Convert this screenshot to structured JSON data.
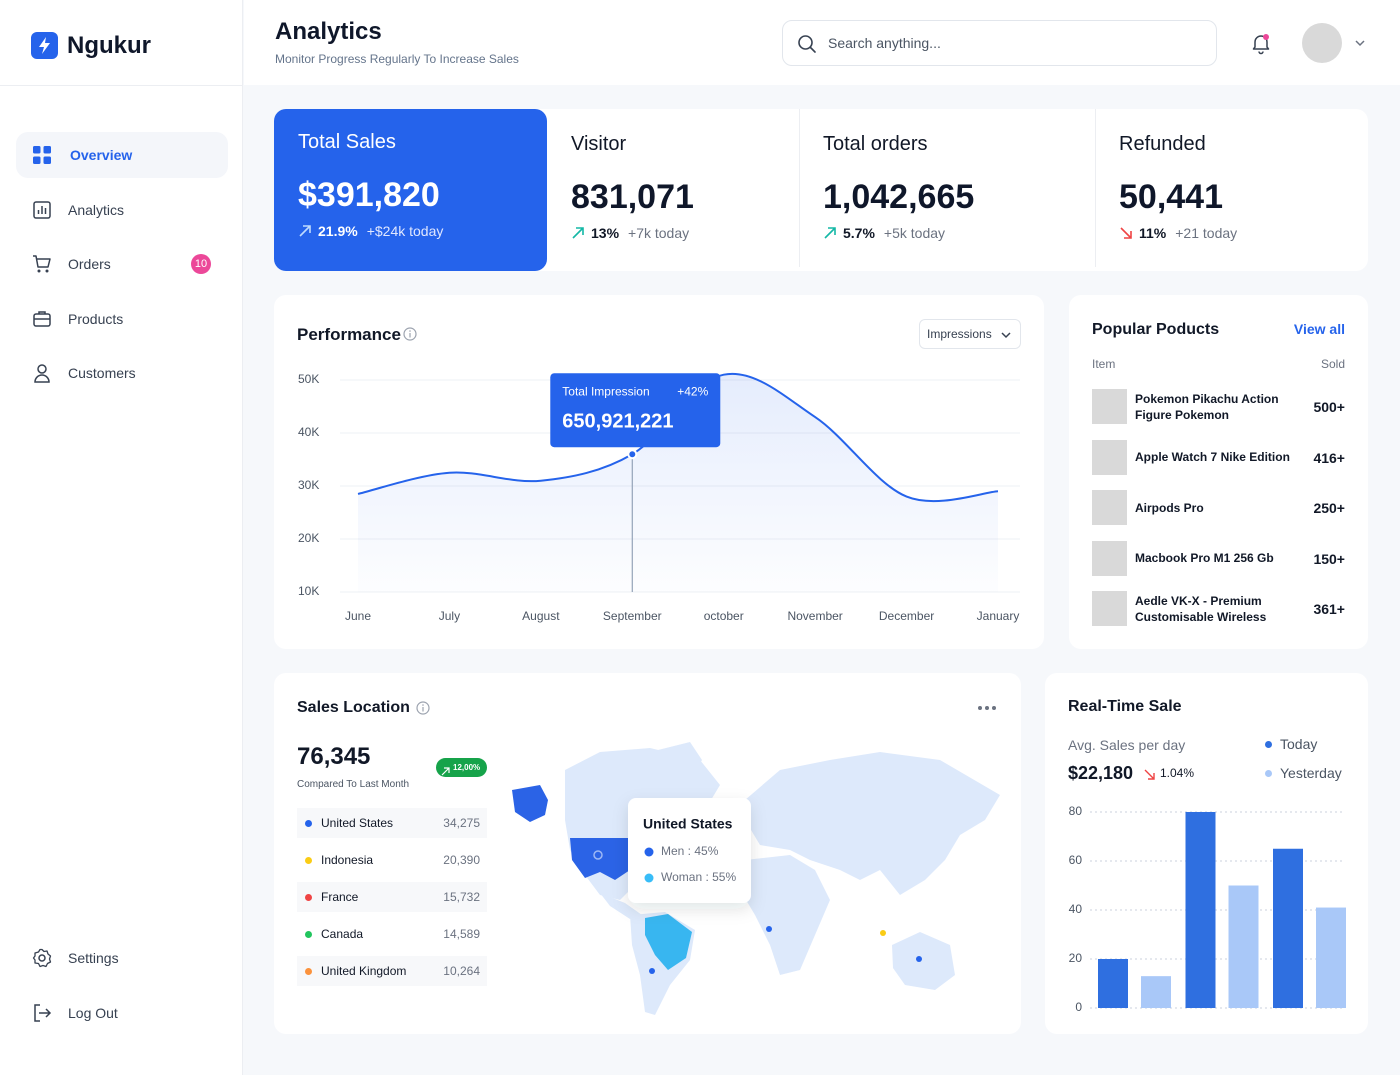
{
  "brand": {
    "name": "Ngukur"
  },
  "nav": {
    "items": [
      {
        "label": "Overview",
        "active": true
      },
      {
        "label": "Analytics"
      },
      {
        "label": "Orders",
        "badge": "10"
      },
      {
        "label": "Products"
      },
      {
        "label": "Customers"
      }
    ],
    "footer": [
      {
        "label": "Settings"
      },
      {
        "label": "Log Out"
      }
    ]
  },
  "header": {
    "title": "Analytics",
    "subtitle": "Monitor Progress Regularly To Increase Sales",
    "search_placeholder": "Search anything..."
  },
  "stats": [
    {
      "label": "Total Sales",
      "value": "$391,820",
      "change": "21.9%",
      "today": "+$24k today",
      "direction": "up",
      "highlight": true
    },
    {
      "label": "Visitor",
      "value": "831,071",
      "change": "13%",
      "today": "+7k today",
      "direction": "up"
    },
    {
      "label": "Total orders",
      "value": "1,042,665",
      "change": "5.7%",
      "today": "+5k today",
      "direction": "up"
    },
    {
      "label": "Refunded",
      "value": "50,441",
      "change": "11%",
      "today": "+21 today",
      "direction": "down"
    }
  ],
  "chart_data": [
    {
      "type": "line",
      "title": "Performance",
      "dropdown": "Impressions",
      "categories": [
        "June",
        "July",
        "August",
        "September",
        "october",
        "November",
        "December",
        "January"
      ],
      "values": [
        28500,
        32500,
        31000,
        36000,
        51000,
        43000,
        28000,
        29000
      ],
      "color": "#2563eb",
      "ylim": [
        10000,
        52000
      ],
      "yticks": [
        {
          "value": 10000,
          "label": "10K"
        },
        {
          "value": 20000,
          "label": "20K"
        },
        {
          "value": 30000,
          "label": "30K"
        },
        {
          "value": 40000,
          "label": "40K"
        },
        {
          "value": 50000,
          "label": "50K"
        }
      ],
      "grid": true,
      "annotation": {
        "category": "September",
        "title": "Total Impression",
        "change": "+42%",
        "value": "650,921,221"
      }
    },
    {
      "type": "bar",
      "title": "Real-Time Sale",
      "subtitle": "Avg. Sales per day",
      "value": "$22,180",
      "change": "1.04%",
      "categories": [
        null,
        null,
        null
      ],
      "series": [
        {
          "name": "Today",
          "color": "#2f6fe0",
          "values": [
            20,
            80,
            65
          ]
        },
        {
          "name": "Yesterday",
          "color": "#a9c8f8",
          "values": [
            13,
            50,
            41
          ]
        }
      ],
      "ylim": [
        0,
        80
      ],
      "yticks": [
        0,
        20,
        40,
        60,
        80
      ],
      "grid": true
    }
  ],
  "popular_products": {
    "title": "Popular Poducts",
    "link": "View all",
    "columns": [
      "Item",
      "Sold"
    ],
    "rows": [
      {
        "name": "Pokemon Pikachu Action Figure Pokemon",
        "sold": "500+"
      },
      {
        "name": "Apple Watch 7 Nike Edition",
        "sold": "416+"
      },
      {
        "name": "Airpods Pro",
        "sold": "250+"
      },
      {
        "name": "Macbook Pro M1 256 Gb",
        "sold": "150+"
      },
      {
        "name": "Aedle VK-X - Premium Customisable Wireless",
        "sold": "361+"
      }
    ]
  },
  "sales_location": {
    "title": "Sales Location",
    "value": "76,345",
    "caption": "Compared To Last Month",
    "badge": "12,00%",
    "countries": [
      {
        "name": "United States",
        "value": "34,275",
        "color": "#2563eb"
      },
      {
        "name": "Indonesia",
        "value": "20,390",
        "color": "#facc15"
      },
      {
        "name": "France",
        "value": "15,732",
        "color": "#ef4444"
      },
      {
        "name": "Canada",
        "value": "14,589",
        "color": "#22c55e"
      },
      {
        "name": "United Kingdom",
        "value": "10,264",
        "color": "#fb923c"
      }
    ],
    "tooltip": {
      "title": "United States",
      "rows": [
        {
          "label": "Men : 45%",
          "color": "#2563eb"
        },
        {
          "label": "Woman : 55%",
          "color": "#38bdf8"
        }
      ]
    }
  }
}
